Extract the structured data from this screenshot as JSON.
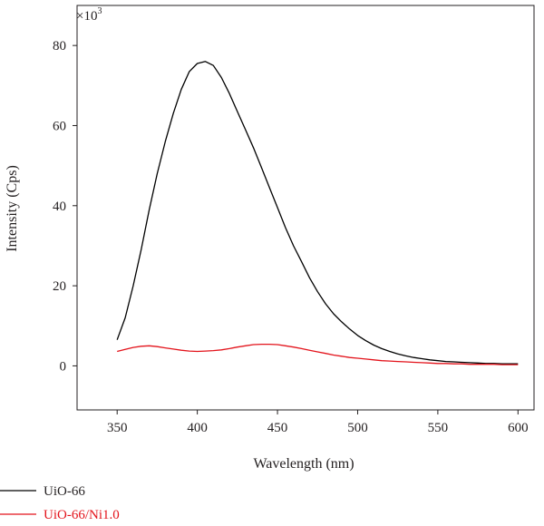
{
  "chart_data": {
    "type": "line",
    "title": "",
    "xlabel": "Wavelength (nm)",
    "ylabel": "Intensity (Cps)",
    "y_multiplier_label": "×10",
    "y_multiplier_exponent": "3",
    "xlim": [
      325,
      610
    ],
    "ylim": [
      -11,
      90
    ],
    "xticks": [
      350,
      400,
      450,
      500,
      550,
      600
    ],
    "yticks": [
      0,
      20,
      40,
      60,
      80
    ],
    "grid": false,
    "legend_position": "bottom-left",
    "x": [
      350,
      355,
      360,
      365,
      370,
      375,
      380,
      385,
      390,
      395,
      400,
      405,
      410,
      415,
      420,
      425,
      430,
      435,
      440,
      445,
      450,
      455,
      460,
      465,
      470,
      475,
      480,
      485,
      490,
      495,
      500,
      505,
      510,
      515,
      520,
      525,
      530,
      535,
      540,
      545,
      550,
      555,
      560,
      565,
      570,
      575,
      580,
      585,
      590,
      595,
      600
    ],
    "series": [
      {
        "name": "UiO-66",
        "color": "#000000",
        "values": [
          6.5,
          12,
          20,
          29,
          39,
          48,
          56,
          63,
          69,
          73.5,
          75.5,
          76,
          75,
          72,
          68,
          63.5,
          59,
          54.5,
          49.5,
          44.5,
          39.5,
          34.5,
          30,
          26,
          22,
          18.5,
          15.5,
          13,
          11,
          9.2,
          7.6,
          6.3,
          5.2,
          4.3,
          3.6,
          3.0,
          2.5,
          2.1,
          1.8,
          1.5,
          1.3,
          1.1,
          1.0,
          0.9,
          0.8,
          0.7,
          0.6,
          0.6,
          0.5,
          0.5,
          0.5
        ]
      },
      {
        "name": "UiO-66/Ni1.0",
        "color": "#e3131b",
        "values": [
          3.6,
          4.1,
          4.6,
          4.9,
          5.0,
          4.8,
          4.5,
          4.2,
          3.9,
          3.7,
          3.6,
          3.7,
          3.8,
          4.0,
          4.3,
          4.7,
          5.0,
          5.3,
          5.4,
          5.4,
          5.3,
          5.0,
          4.7,
          4.3,
          3.9,
          3.5,
          3.1,
          2.7,
          2.4,
          2.1,
          1.9,
          1.7,
          1.5,
          1.3,
          1.2,
          1.1,
          1.0,
          0.9,
          0.8,
          0.7,
          0.6,
          0.6,
          0.5,
          0.5,
          0.4,
          0.4,
          0.4,
          0.4,
          0.3,
          0.3,
          0.3
        ]
      }
    ]
  }
}
